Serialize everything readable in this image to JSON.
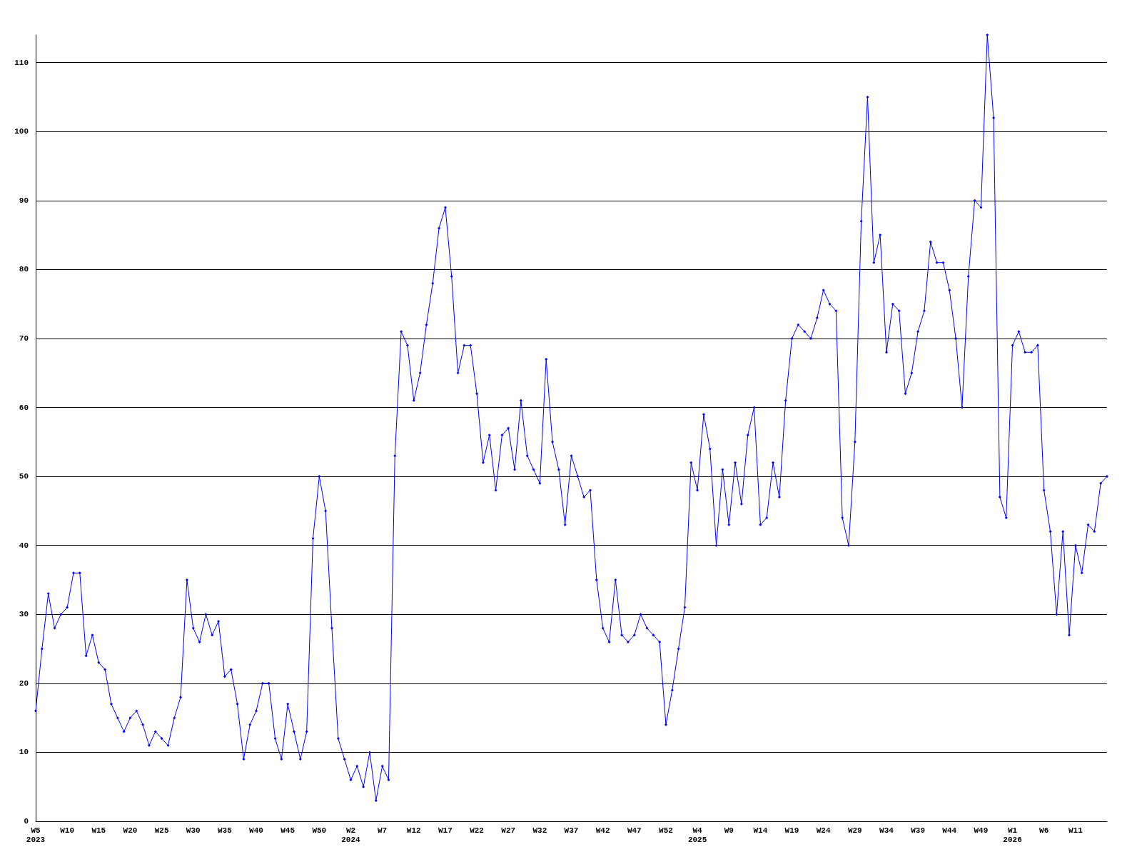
{
  "chart_data": {
    "type": "line",
    "categories": [
      "W5\n2023",
      null,
      null,
      null,
      null,
      "W10",
      null,
      null,
      null,
      null,
      "W15",
      null,
      null,
      null,
      null,
      "W20",
      null,
      null,
      null,
      null,
      "W25",
      null,
      null,
      null,
      null,
      "W30",
      null,
      null,
      null,
      null,
      "W35",
      null,
      null,
      null,
      null,
      "W40",
      null,
      null,
      null,
      null,
      "W45",
      null,
      null,
      null,
      null,
      "W50",
      null,
      null,
      null,
      null,
      "W2\n2024",
      null,
      null,
      null,
      null,
      "W7",
      null,
      null,
      null,
      null,
      "W12",
      null,
      null,
      null,
      null,
      "W17",
      null,
      null,
      null,
      null,
      "W22",
      null,
      null,
      null,
      null,
      "W27",
      null,
      null,
      null,
      null,
      "W32",
      null,
      null,
      null,
      null,
      "W37",
      null,
      null,
      null,
      null,
      "W42",
      null,
      null,
      null,
      null,
      "W47",
      null,
      null,
      null,
      null,
      "W52",
      null,
      null,
      null,
      null,
      "W4\n2025",
      null,
      null,
      null,
      null,
      "W9",
      null,
      null,
      null,
      null,
      "W14",
      null,
      null,
      null,
      null,
      "W19",
      null,
      null,
      null,
      null,
      "W24",
      null,
      null,
      null,
      null,
      "W29",
      null,
      null,
      null,
      null,
      "W34",
      null,
      null,
      null,
      null,
      "W39",
      null,
      null,
      null,
      null,
      "W44",
      null,
      null,
      null,
      null,
      "W49",
      null,
      null,
      null,
      null,
      "W1\n2026",
      null,
      null,
      null,
      null,
      "W6",
      null,
      null,
      null,
      null,
      "W11",
      null,
      null,
      null,
      null,
      null
    ],
    "series": [
      {
        "color": "#0000ff",
        "values": [
          16,
          25,
          33,
          28,
          30,
          31,
          36,
          36,
          24,
          27,
          23,
          22,
          17,
          15,
          13,
          15,
          16,
          14,
          11,
          13,
          12,
          11,
          15,
          18,
          35,
          28,
          26,
          30,
          27,
          29,
          21,
          22,
          17,
          9,
          14,
          16,
          20,
          20,
          12,
          9,
          17,
          13,
          9,
          13,
          41,
          50,
          45,
          28,
          12,
          9,
          6,
          8,
          5,
          10,
          3,
          8,
          6,
          53,
          71,
          69,
          61,
          65,
          72,
          78,
          86,
          89,
          79,
          65,
          69,
          69,
          62,
          52,
          56,
          48,
          56,
          57,
          51,
          61,
          53,
          51,
          49,
          67,
          55,
          51,
          43,
          53,
          50,
          47,
          48,
          35,
          28,
          26,
          35,
          27,
          26,
          27,
          30,
          28,
          27,
          26,
          14,
          19,
          25,
          31,
          52,
          48,
          59,
          54,
          40,
          51,
          43,
          52,
          46,
          56,
          60,
          43,
          44,
          52,
          47,
          61,
          70,
          72,
          71,
          70,
          73,
          77,
          75,
          74,
          44,
          40,
          55,
          87,
          105,
          81,
          85,
          68,
          75,
          74,
          62,
          65,
          71,
          74,
          84,
          81,
          81,
          77,
          70,
          60,
          79,
          90,
          89,
          114,
          102,
          47,
          44,
          69,
          71,
          68,
          68,
          69,
          48,
          42,
          30,
          42,
          27,
          40,
          36,
          43,
          42,
          49,
          50
        ]
      }
    ],
    "ylim": [
      0,
      114
    ],
    "yticks": [
      0,
      10,
      20,
      30,
      40,
      50,
      60,
      70,
      80,
      90,
      100,
      110
    ],
    "grid": "y",
    "marker": "diamond",
    "line_style": "solid"
  }
}
